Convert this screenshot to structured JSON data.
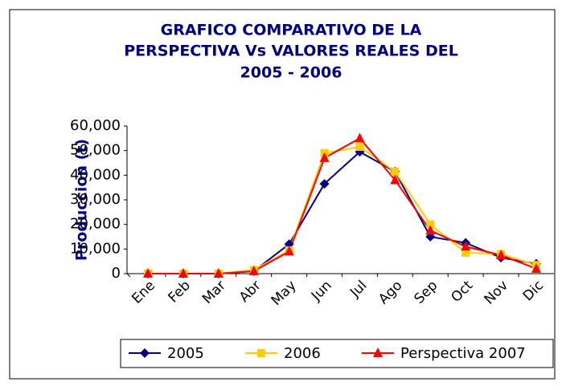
{
  "chart_data": {
    "type": "line",
    "title": [
      "GRAFICO COMPARATIVO DE LA",
      "PERSPECTIVA Vs VALORES REALES DEL",
      "2005 - 2006"
    ],
    "y_label": "Produccion (t)",
    "categories": [
      "Ene",
      "Feb",
      "Mar",
      "Abr",
      "May",
      "Jun",
      "Jul",
      "Ago",
      "Sep",
      "Oct",
      "Nov",
      "Dic"
    ],
    "series": [
      {
        "name": "2005",
        "color": "#000080",
        "marker": "diamond",
        "values": [
          0,
          0,
          0,
          1000,
          12000,
          36500,
          49500,
          41500,
          15000,
          12500,
          6500,
          4000
        ]
      },
      {
        "name": "2006",
        "color": "#FFCC00",
        "marker": "square",
        "values": [
          0,
          0,
          0,
          1500,
          9500,
          49000,
          51500,
          41500,
          20000,
          8500,
          8000,
          3500
        ]
      },
      {
        "name": "Perspectiva 2007",
        "color": "#FF0000",
        "marker": "triangle",
        "values": [
          0,
          0,
          0,
          1000,
          9000,
          47000,
          55000,
          38000,
          17500,
          11000,
          7500,
          2000
        ]
      }
    ],
    "ylim": [
      0,
      60000
    ],
    "yticks": [
      0,
      {
        "value": 10000,
        "label": "10,000"
      },
      {
        "value": 20000,
        "label": "20,000"
      },
      {
        "value": 30000,
        "label": "30,000"
      },
      {
        "value": 40000,
        "label": "40,000"
      },
      {
        "value": 50000,
        "label": "50,000"
      },
      {
        "value": 60000,
        "label": "60,000"
      }
    ],
    "legend": "bottom"
  }
}
